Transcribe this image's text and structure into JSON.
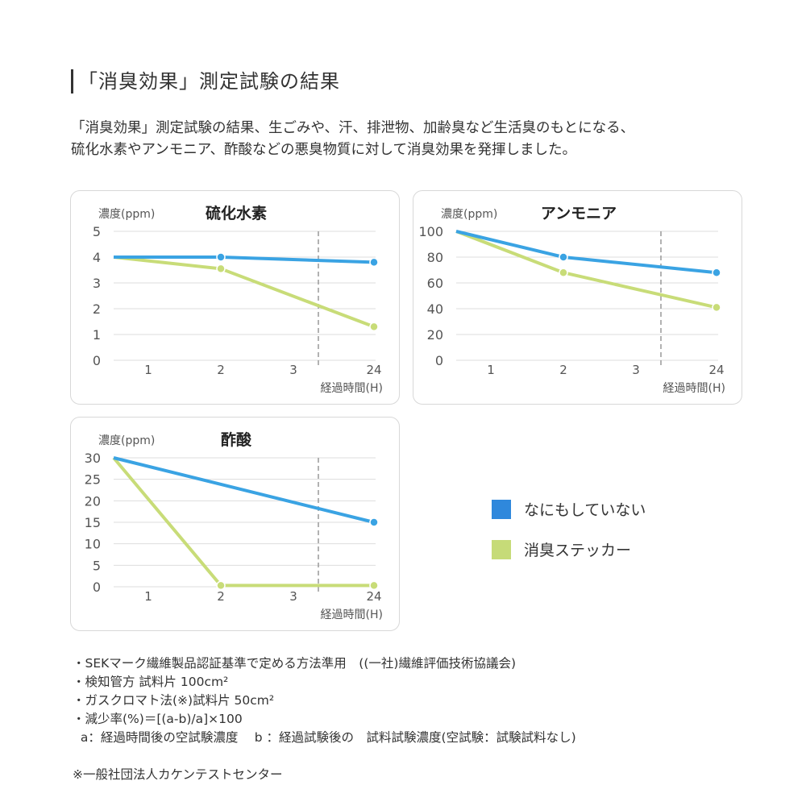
{
  "title": "「消臭効果」測定試験の結果",
  "intro": [
    "「消臭効果」測定試験の結果、生ごみや、汗、排泄物、加齢臭など生活臭のもとになる、",
    "硫化水素やアンモニア、酢酸などの悪臭物質に対して消臭効果を発揮しました。"
  ],
  "colors": {
    "untreated": "#3aa3e3",
    "sticker": "#c8dc78",
    "legend_untreated": "#2f88dc",
    "legend_sticker": "#c6db78"
  },
  "legend": [
    {
      "label": "なにもしていない",
      "color": "#2f88dc"
    },
    {
      "label": "消臭ステッカー",
      "color": "#c6db78"
    }
  ],
  "chart_data": [
    {
      "type": "line",
      "title": "硫化水素",
      "ylabel": "濃度(ppm)",
      "xlabel": "経過時間(H)",
      "categories": [
        "1",
        "2",
        "3",
        "24"
      ],
      "yticks": [
        "0",
        "1",
        "2",
        "3",
        "4",
        "5"
      ],
      "ylim": [
        0,
        5
      ],
      "grid": true,
      "axis_break_between": [
        "3",
        "24"
      ],
      "series": [
        {
          "name": "なにもしていない",
          "x": [
            "start",
            "2",
            "24"
          ],
          "values": [
            4,
            4,
            3.8
          ]
        },
        {
          "name": "消臭ステッカー",
          "x": [
            "start",
            "2",
            "24"
          ],
          "values": [
            4,
            3.55,
            1.3
          ]
        }
      ]
    },
    {
      "type": "line",
      "title": "アンモニア",
      "ylabel": "濃度(ppm)",
      "xlabel": "経過時間(H)",
      "categories": [
        "1",
        "2",
        "3",
        "24"
      ],
      "yticks": [
        "0",
        "20",
        "40",
        "60",
        "80",
        "100"
      ],
      "ylim": [
        0,
        100
      ],
      "grid": true,
      "axis_break_between": [
        "3",
        "24"
      ],
      "series": [
        {
          "name": "なにもしていない",
          "x": [
            "start",
            "2",
            "24"
          ],
          "values": [
            100,
            80,
            68
          ]
        },
        {
          "name": "消臭ステッカー",
          "x": [
            "start",
            "2",
            "24"
          ],
          "values": [
            100,
            68,
            41
          ]
        }
      ]
    },
    {
      "type": "line",
      "title": "酢酸",
      "ylabel": "濃度(ppm)",
      "xlabel": "経過時間(H)",
      "categories": [
        "1",
        "2",
        "3",
        "24"
      ],
      "yticks": [
        "0",
        "5",
        "10",
        "15",
        "20",
        "25",
        "30"
      ],
      "ylim": [
        0,
        30
      ],
      "grid": true,
      "axis_break_between": [
        "3",
        "24"
      ],
      "series": [
        {
          "name": "なにもしていない",
          "x": [
            "start",
            "24"
          ],
          "values": [
            30,
            15
          ]
        },
        {
          "name": "消臭ステッカー",
          "x": [
            "start",
            "2",
            "24"
          ],
          "values": [
            30,
            0.3,
            0.3
          ]
        }
      ]
    }
  ],
  "notes": [
    "・SEKマーク繊維製品認証基準で定める方法準用　((一社)繊維評価技術協議会)",
    "・検知管方 試料片 100cm²",
    "・ガスクロマト法(※)試料片 50cm²",
    "・減少率(%)＝[(a-b)/a]×100",
    "  a：経過時間後の空試験濃度　 b ：経過試験後の　試料試験濃度(空試験：試験試料なし)",
    "",
    "※一般社団法人カケンテストセンター"
  ]
}
